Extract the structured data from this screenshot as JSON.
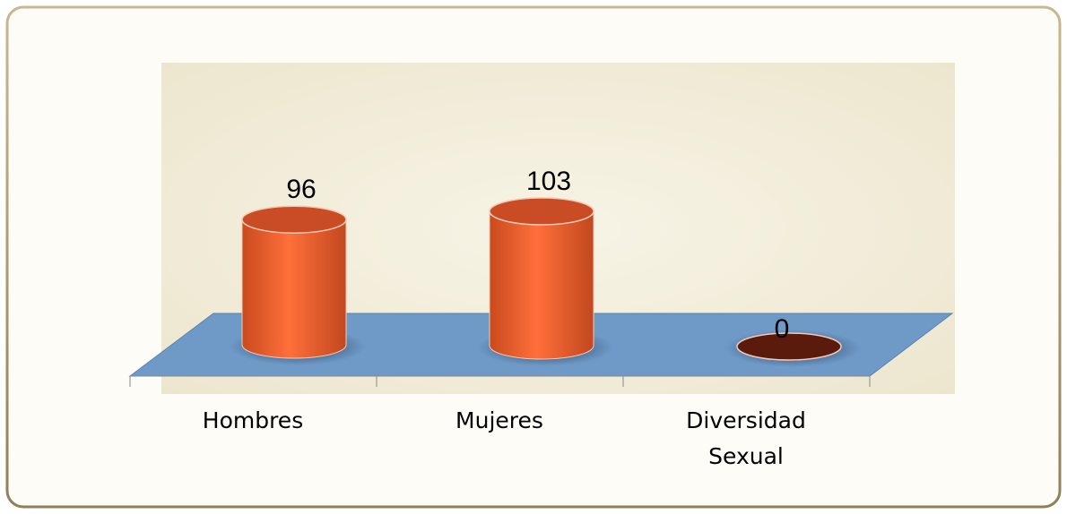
{
  "chart_data": {
    "type": "bar",
    "categories": [
      "Hombres",
      "Mujeres",
      "Diversidad Sexual"
    ],
    "values": [
      96,
      103,
      0
    ],
    "color": "#f96a35",
    "floor_color": "#6f9ac8"
  }
}
